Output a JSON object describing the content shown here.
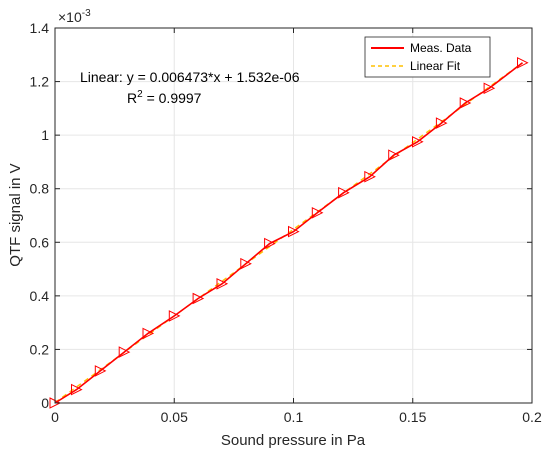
{
  "chart_data": {
    "type": "line",
    "xlabel": "Sound pressure in Pa",
    "ylabel": "QTF signal in V",
    "y_exponent": "×10",
    "y_exponent_power": "-3",
    "xlim": [
      0,
      0.2
    ],
    "ylim": [
      0,
      1.4
    ],
    "x_ticks": [
      "0",
      "0.05",
      "0.1",
      "0.15",
      "0.2"
    ],
    "y_ticks": [
      "0",
      "0.2",
      "0.4",
      "0.6",
      "0.8",
      "1",
      "1.2",
      "1.4"
    ],
    "grid": true,
    "legend_position": "top-right",
    "annotation": {
      "line1": "Linear:  y = 0.006473*x + 1.532e-06",
      "r2_prefix": "R",
      "r2_sup": "2",
      "r2_value": " = 0.9997"
    },
    "series": [
      {
        "name": "Meas. Data",
        "color": "#ff0000",
        "style": "solid",
        "marker": "triangle-right",
        "x": [
          0.0,
          0.009,
          0.019,
          0.029,
          0.039,
          0.05,
          0.06,
          0.07,
          0.08,
          0.09,
          0.1,
          0.11,
          0.121,
          0.132,
          0.142,
          0.152,
          0.162,
          0.172,
          0.182,
          0.196
        ],
        "y": [
          0.0,
          0.05,
          0.12,
          0.19,
          0.26,
          0.325,
          0.39,
          0.445,
          0.52,
          0.595,
          0.64,
          0.71,
          0.785,
          0.845,
          0.925,
          0.975,
          1.045,
          1.12,
          1.175,
          1.27
        ]
      },
      {
        "name": "Linear Fit",
        "color": "#ffc000",
        "style": "dashed",
        "x": [
          0.0,
          0.196
        ],
        "y": [
          0.0015,
          1.27
        ]
      }
    ]
  }
}
